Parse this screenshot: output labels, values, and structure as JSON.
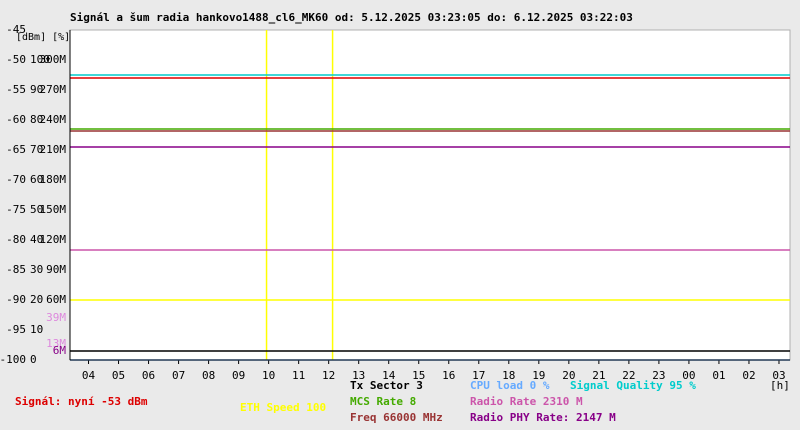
{
  "chart_data": {
    "type": "line",
    "title": "Signál a šum radia hankovo1488_cl6_MK60 od: 5.12.2025 03:23:05 do: 6.12.2025 03:22:03",
    "y_label": "[dBm] [%]",
    "x_label": "[h]",
    "xlim": [
      3.383,
      27.367
    ],
    "xticks": [
      {
        "value": 4,
        "label": "04"
      },
      {
        "value": 5,
        "label": "05"
      },
      {
        "value": 6,
        "label": "06"
      },
      {
        "value": 7,
        "label": "07"
      },
      {
        "value": 8,
        "label": "08"
      },
      {
        "value": 9,
        "label": "09"
      },
      10,
      11,
      12,
      13,
      14,
      15,
      16,
      17,
      18,
      19,
      20,
      21,
      22,
      23,
      {
        "value": 24,
        "label": "00"
      },
      {
        "value": 25,
        "label": "01"
      },
      {
        "value": 26,
        "label": "02"
      },
      {
        "value": 27,
        "label": "03"
      }
    ],
    "ylim": [
      -100,
      -45
    ],
    "yticks": [
      -100,
      -95,
      -90,
      -85,
      -80,
      -75,
      -70,
      -65,
      -60,
      -55,
      -50,
      -45
    ],
    "y2lim": [
      0,
      110
    ],
    "y2ticks": [
      0,
      10,
      20,
      30,
      40,
      50,
      60,
      70,
      80,
      90,
      100
    ],
    "y3lim": [
      0,
      330
    ],
    "y3ticks": [
      {
        "value": 60,
        "label": "60M"
      },
      {
        "value": 90,
        "label": "90M"
      },
      {
        "value": 120,
        "label": "120M"
      },
      {
        "value": 150,
        "label": "150M"
      },
      {
        "value": 180,
        "label": "180M"
      },
      {
        "value": 210,
        "label": "210M"
      },
      {
        "value": 240,
        "label": "240M"
      },
      {
        "value": 270,
        "label": "270M"
      },
      {
        "value": 300,
        "label": "300M"
      }
    ],
    "rate_labels": [
      {
        "value": 39,
        "label": "39M",
        "color": "#dd88dd"
      },
      {
        "value": 13,
        "label": "13M",
        "color": "#dd88dd"
      },
      {
        "value": 6,
        "label": "6M",
        "color": "#880088"
      }
    ],
    "markers": [
      {
        "x": 9.93,
        "color": "#ffff00"
      },
      {
        "x": 12.13,
        "color": "#ffff00"
      }
    ],
    "series": [
      {
        "name": "Signál: nyní -53 dBm",
        "color": "#dd0000",
        "axis": "y",
        "value": -53
      },
      {
        "name": "ETH Speed 100",
        "color": "#ffff00",
        "axis": "y3",
        "value": 60
      },
      {
        "name": "Tx Sector 3",
        "color": "#000000",
        "axis": "y3",
        "value": 9
      },
      {
        "name": "MCS Rate 8",
        "color": "#44aa00",
        "axis": "y3",
        "value": 231
      },
      {
        "name": "Freq 66000 MHz",
        "color": "#993333",
        "axis": "y3",
        "value": 229
      },
      {
        "name": "CPU load 0 %",
        "color": "#66aaff",
        "axis": "y2",
        "value": 0
      },
      {
        "name": "Radio Rate 2310 M",
        "color": "#cc55aa",
        "axis": "y3",
        "value": 110
      },
      {
        "name": "Radio PHY Rate: 2147 M",
        "color": "#880088",
        "axis": "y3",
        "value": 213
      },
      {
        "name": "Signal Quality 95 %",
        "color": "#00cccc",
        "axis": "y2",
        "value": 95
      }
    ]
  }
}
